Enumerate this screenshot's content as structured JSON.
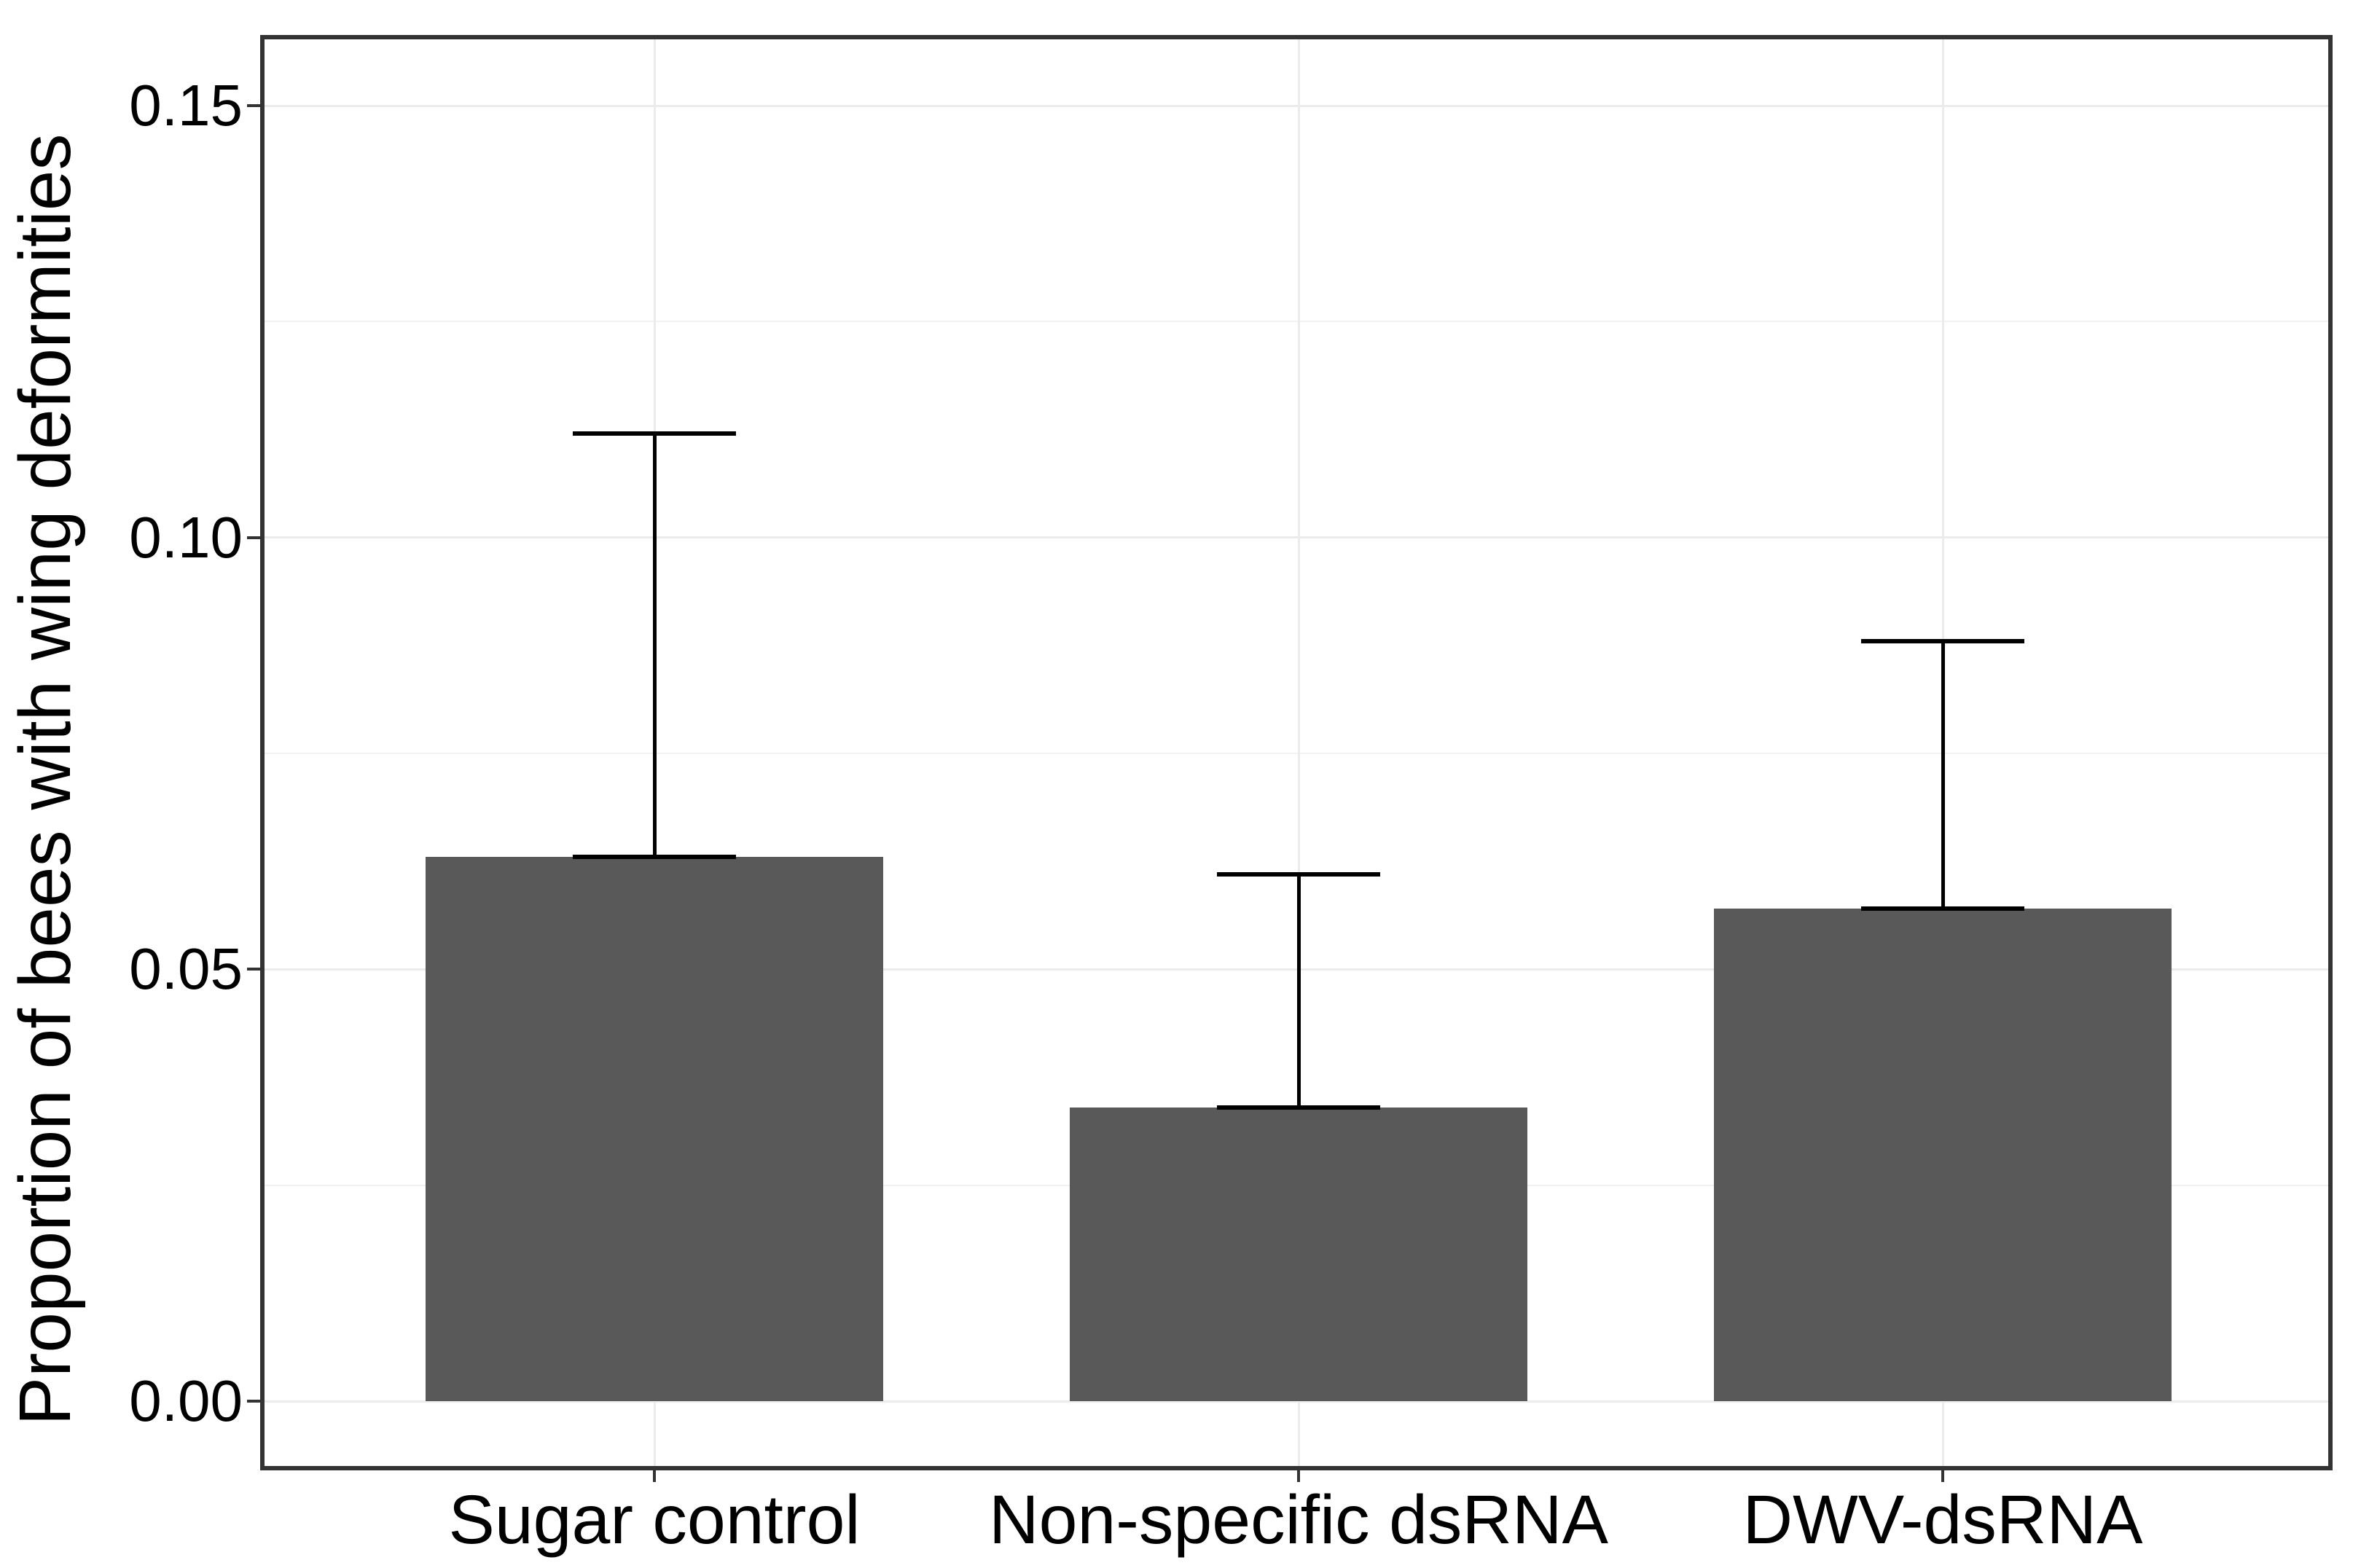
{
  "chart_data": {
    "type": "bar",
    "title": "",
    "xlabel": "",
    "ylabel": "Proportion of bees with wing deformities",
    "categories": [
      "Sugar control",
      "Non-specific dsRNA",
      "DWV-dsRNA"
    ],
    "values": [
      0.063,
      0.034,
      0.057
    ],
    "error_upper": [
      0.112,
      0.061,
      0.088
    ],
    "y_tick_labels": [
      "0.00",
      "0.05",
      "0.10",
      "0.15"
    ],
    "y_tick_values": [
      0,
      0.05,
      0.1,
      0.15
    ],
    "y_minor_values": [
      0.025,
      0.075,
      0.125
    ],
    "ylim": [
      -0.0075,
      0.158
    ],
    "grid": "major and minor horizontal, major vertical at category centers",
    "legend": false,
    "bar_color": "#595959",
    "error_bar_color": "#000000",
    "panel_border_color": "#333333",
    "grid_major_color": "#ebebeb",
    "grid_minor_color": "#f2f2f2",
    "axis_text_color": "#000000"
  }
}
